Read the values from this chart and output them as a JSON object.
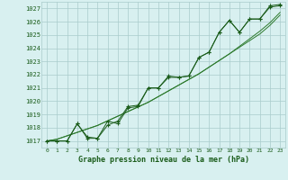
{
  "title": "Graphe pression niveau de la mer (hPa)",
  "x_labels": [
    "0",
    "1",
    "2",
    "3",
    "4",
    "5",
    "6",
    "7",
    "8",
    "9",
    "10",
    "11",
    "12",
    "13",
    "14",
    "15",
    "16",
    "17",
    "18",
    "19",
    "20",
    "21",
    "22",
    "23"
  ],
  "ylim": [
    1016.5,
    1027.5
  ],
  "xlim": [
    -0.5,
    23.5
  ],
  "yticks": [
    1017,
    1018,
    1019,
    1020,
    1021,
    1022,
    1023,
    1024,
    1025,
    1026,
    1027
  ],
  "bg_color": "#d8f0f0",
  "grid_color": "#aacccc",
  "line_color_main": "#1a5c1a",
  "line_color_smooth": "#2d7a2d",
  "series1": [
    1017.0,
    1017.0,
    1017.0,
    1018.3,
    1017.3,
    1017.2,
    1018.5,
    1018.3,
    1019.5,
    1019.6,
    1021.0,
    1021.0,
    1021.9,
    1021.8,
    1021.9,
    1023.3,
    1023.7,
    1025.2,
    1026.1,
    1025.2,
    1026.2,
    1026.2,
    1027.1,
    1027.2
  ],
  "series2": [
    1017.0,
    1017.0,
    1017.0,
    1018.3,
    1017.2,
    1017.2,
    1018.2,
    1018.5,
    1019.6,
    1019.7,
    1021.0,
    1021.0,
    1021.8,
    1021.8,
    1021.9,
    1023.3,
    1023.7,
    1025.2,
    1026.1,
    1025.2,
    1026.2,
    1026.2,
    1027.2,
    1027.3
  ],
  "series_smooth1": [
    1017.0,
    1017.13,
    1017.39,
    1017.65,
    1017.91,
    1018.17,
    1018.52,
    1018.87,
    1019.22,
    1019.57,
    1019.92,
    1020.35,
    1020.78,
    1021.21,
    1021.64,
    1022.07,
    1022.57,
    1023.07,
    1023.57,
    1024.14,
    1024.71,
    1025.28,
    1025.92,
    1026.7
  ],
  "series_smooth2": [
    1017.0,
    1017.13,
    1017.39,
    1017.65,
    1017.91,
    1018.17,
    1018.52,
    1018.87,
    1019.22,
    1019.57,
    1019.92,
    1020.35,
    1020.78,
    1021.21,
    1021.64,
    1022.07,
    1022.57,
    1023.07,
    1023.57,
    1024.07,
    1024.57,
    1025.07,
    1025.72,
    1026.5
  ]
}
